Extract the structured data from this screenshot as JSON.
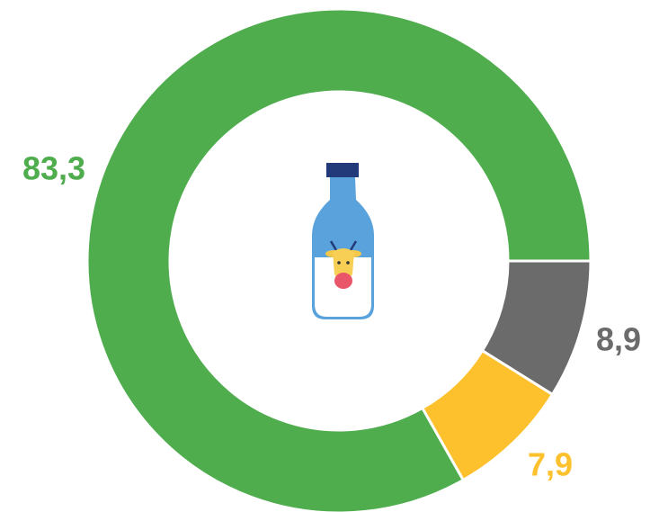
{
  "chart_data": {
    "type": "donut",
    "categories": [
      "gray",
      "yellow",
      "green"
    ],
    "series": [
      {
        "values": [
          8.9,
          7.9,
          83.3
        ],
        "value_labels": [
          "8,9",
          "7,9",
          "83,3"
        ],
        "colors": [
          "#6b6b6b",
          "#fdc12e",
          "#4fad4e"
        ]
      }
    ]
  }
}
